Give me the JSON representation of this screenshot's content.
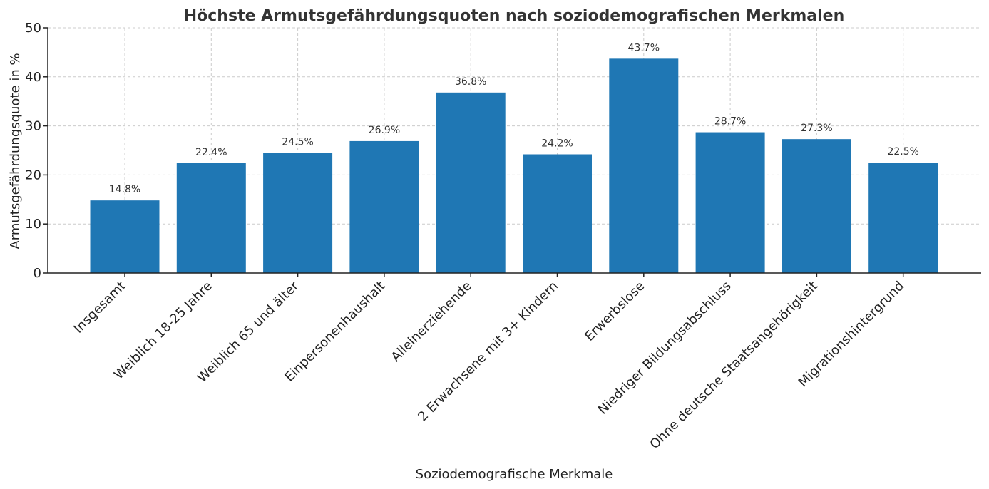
{
  "chart_data": {
    "type": "bar",
    "title": "Höchste Armutsgefährdungsquoten nach soziodemografischen Merkmalen",
    "xlabel": "Soziodemografische Merkmale",
    "ylabel": "Armutsgefährdungsquote in %",
    "ylim": [
      0,
      50
    ],
    "yticks": [
      0,
      10,
      20,
      30,
      40,
      50
    ],
    "grid": true,
    "bar_color": "#1f77b4",
    "categories": [
      "Insgesamt",
      "Weiblich 18-25 Jahre",
      "Weiblich 65 und älter",
      "Einpersonenhaushalt",
      "Alleinerziehende",
      "2 Erwachsene mit 3+ Kindern",
      "Erwerbslose",
      "Niedriger Bildungsabschluss",
      "Ohne deutsche Staatsangehörigkeit",
      "Migrationshintergrund"
    ],
    "values": [
      14.8,
      22.4,
      24.5,
      26.9,
      36.8,
      24.2,
      43.7,
      28.7,
      27.3,
      22.5
    ],
    "data_labels": [
      "14.8%",
      "22.4%",
      "24.5%",
      "26.9%",
      "36.8%",
      "24.2%",
      "43.7%",
      "28.7%",
      "27.3%",
      "22.5%"
    ]
  }
}
